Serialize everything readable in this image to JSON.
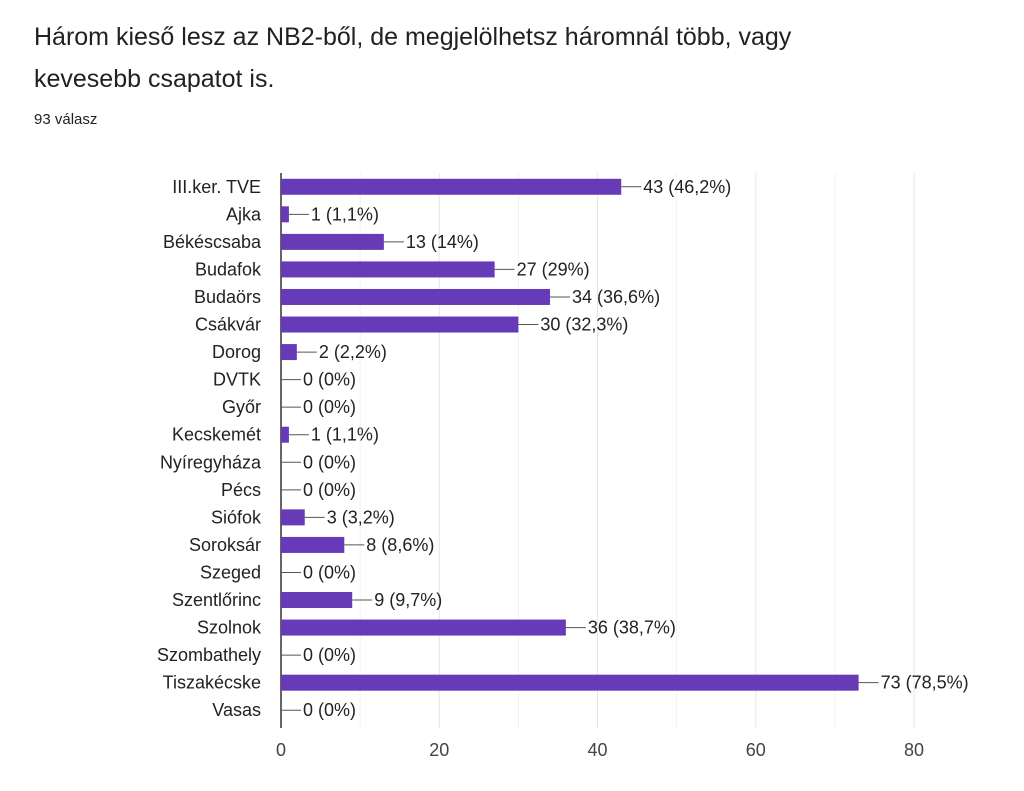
{
  "question": {
    "title": "Három kieső lesz az NB2-ből, de megjelölhetsz háromnál több, vagy kevesebb csapatot is.",
    "response_count": "93 válasz"
  },
  "colors": {
    "bar": "#673ab7",
    "gridline": "#e6e6e6",
    "axis": "#333333",
    "connector": "#555555"
  },
  "chart_data": {
    "type": "bar",
    "orientation": "horizontal",
    "title": "",
    "xlabel": "",
    "ylabel": "",
    "xlim": [
      0,
      80
    ],
    "x_ticks": [
      0,
      20,
      40,
      60,
      80
    ],
    "grid": true,
    "categories": [
      "III.ker. TVE",
      "Ajka",
      "Békéscsaba",
      "Budafok",
      "Budaörs",
      "Csákvár",
      "Dorog",
      "DVTK",
      "Győr",
      "Kecskemét",
      "Nyíregyháza",
      "Pécs",
      "Siófok",
      "Soroksár",
      "Szeged",
      "Szentlőrinc",
      "Szolnok",
      "Szombathely",
      "Tiszakécske",
      "Vasas"
    ],
    "values": [
      43,
      1,
      13,
      27,
      34,
      30,
      2,
      0,
      0,
      1,
      0,
      0,
      3,
      8,
      0,
      9,
      36,
      0,
      73,
      0
    ],
    "data_labels": [
      "43 (46,2%)",
      "1 (1,1%)",
      "13 (14%)",
      "27 (29%)",
      "34 (36,6%)",
      "30 (32,3%)",
      "2 (2,2%)",
      "0 (0%)",
      "0 (0%)",
      "1 (1,1%)",
      "0 (0%)",
      "0 (0%)",
      "3 (3,2%)",
      "8 (8,6%)",
      "0 (0%)",
      "9 (9,7%)",
      "36 (38,7%)",
      "0 (0%)",
      "73 (78,5%)",
      "0 (0%)"
    ]
  }
}
